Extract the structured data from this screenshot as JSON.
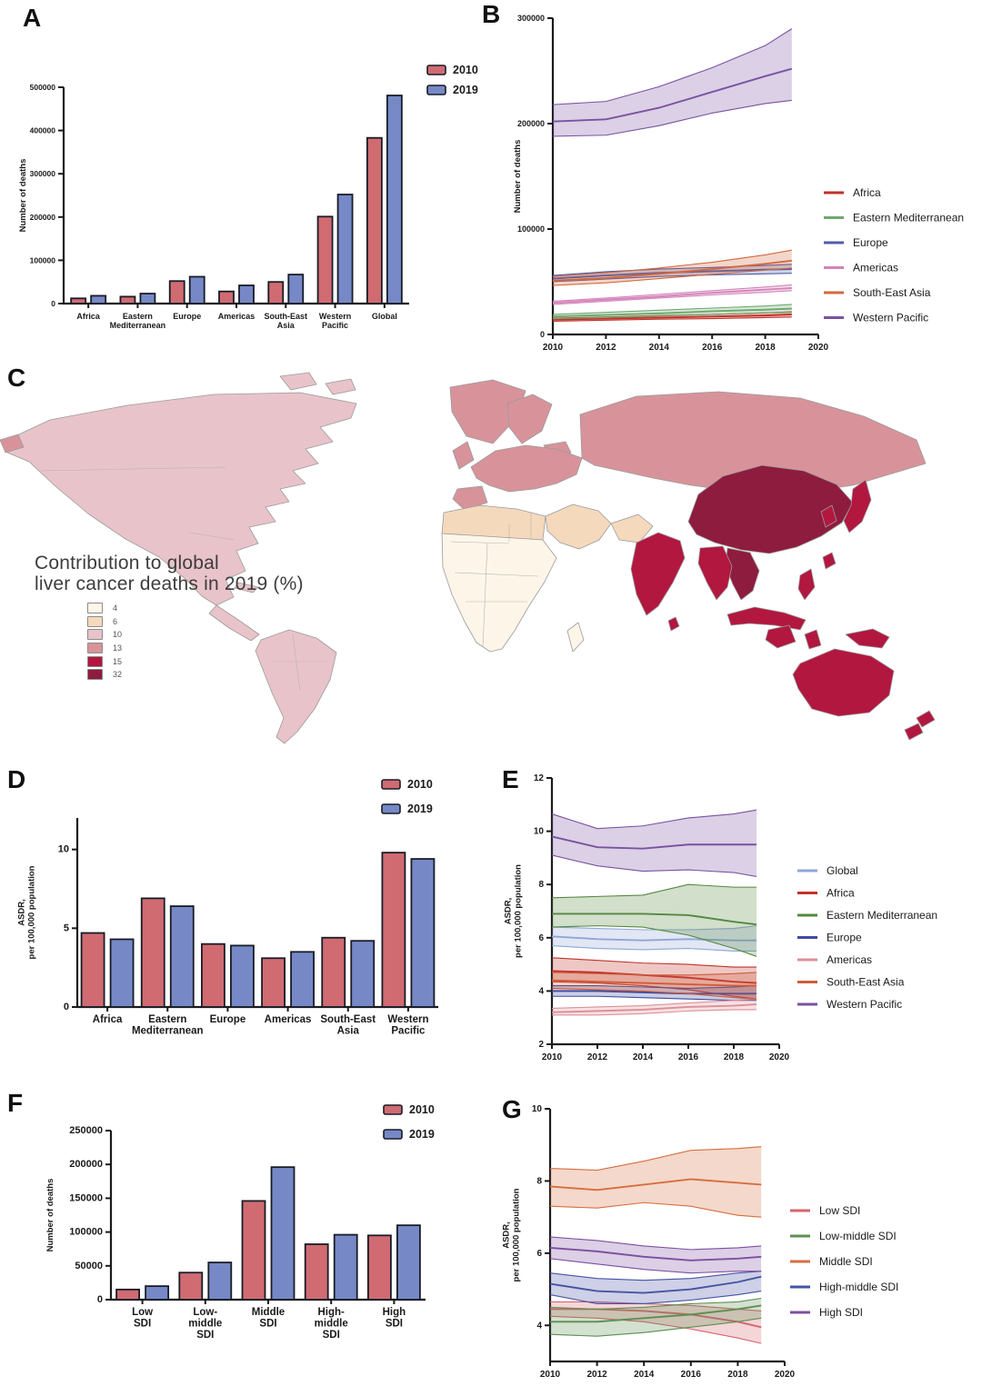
{
  "panels": {
    "A": {
      "label": "A"
    },
    "B": {
      "label": "B"
    },
    "C": {
      "label": "C"
    },
    "D": {
      "label": "D"
    },
    "E": {
      "label": "E"
    },
    "F": {
      "label": "F"
    },
    "G": {
      "label": "G"
    }
  },
  "colors": {
    "bar_2010": "#d06b72",
    "bar_2019": "#7689c6",
    "bar_stroke": "#181c26",
    "axis": "#1a1a1a"
  },
  "map": {
    "legend_title_line1": "Contribution to global",
    "legend_title_line2": "liver  cancer deaths in 2019 (%)",
    "legend_items": [
      {
        "label": "4",
        "color": "#fdf6e8"
      },
      {
        "label": "6",
        "color": "#f5d9bd"
      },
      {
        "label": "10",
        "color": "#e9c3ca"
      },
      {
        "label": "13",
        "color": "#d8939a"
      },
      {
        "label": "15",
        "color": "#b2173f"
      },
      {
        "label": "32",
        "color": "#8e1c3e"
      }
    ],
    "regions": {
      "north-america": "10",
      "arctic-islands-1": "10",
      "arctic-islands-2": "10",
      "central-america": "10",
      "cuba": "10",
      "south-america": "10",
      "greenland": "13",
      "iceland": "13",
      "uk": "13",
      "scandinavia": "13",
      "europe": "13",
      "iberia": "13",
      "russia-central-asia": "13",
      "russia-far-east": "13",
      "north-africa": "6",
      "middle-east": "6",
      "iran-pakistan": "6",
      "sub-saharan-africa": "4",
      "madagascar": "4",
      "china-mongolia": "32",
      "indochina": "32",
      "india": "15",
      "sri-lanka": "15",
      "myanmar-thailand": "15",
      "korea": "15",
      "japan": "15",
      "taiwan": "15",
      "philippines": "15",
      "indonesia": "15",
      "borneo": "15",
      "sulawesi": "15",
      "new-guinea": "15",
      "australia": "15",
      "new-zealand-north": "15",
      "new-zealand-south": "15"
    }
  },
  "chart_data": [
    {
      "panel": "A",
      "type": "bar",
      "ylabel": "Number of deaths",
      "categories": [
        "Africa",
        "Eastern\nMediterranean",
        "Europe",
        "Americas",
        "South-East\nAsia",
        "Western\nPacific",
        "Global"
      ],
      "ylim": [
        0,
        500000
      ],
      "yticks": [
        0,
        100000,
        200000,
        300000,
        400000,
        500000
      ],
      "series": [
        {
          "name": "2010",
          "values": [
            12000,
            16000,
            52000,
            28000,
            50000,
            201000,
            383000
          ]
        },
        {
          "name": "2019",
          "values": [
            18000,
            23000,
            62000,
            42000,
            67000,
            252000,
            481000
          ]
        }
      ]
    },
    {
      "panel": "B",
      "type": "line",
      "ylabel": "Number of deaths",
      "x": [
        2010,
        2012,
        2014,
        2016,
        2018,
        2019
      ],
      "xlim": [
        2010,
        2020
      ],
      "xticks": [
        2010,
        2012,
        2014,
        2016,
        2018,
        2020
      ],
      "ylim": [
        0,
        300000
      ],
      "yticks": [
        0,
        100000,
        200000,
        300000
      ],
      "series": [
        {
          "name": "Africa",
          "color": "#c2312a",
          "center": [
            14000,
            15000,
            16000,
            17000,
            18000,
            19000
          ],
          "lo": [
            12500,
            13500,
            14500,
            15000,
            16000,
            16500
          ],
          "hi": [
            15500,
            16500,
            18000,
            19000,
            20500,
            21500
          ]
        },
        {
          "name": "Eastern Mediterranean",
          "color": "#6ea86e",
          "center": [
            17000,
            18500,
            20000,
            22000,
            23500,
            24500
          ],
          "lo": [
            15000,
            16000,
            17500,
            19000,
            20500,
            21000
          ],
          "hi": [
            19000,
            21000,
            23000,
            25000,
            27000,
            28500
          ]
        },
        {
          "name": "Europe",
          "color": "#4f5ca8",
          "center": [
            53000,
            56000,
            58500,
            60000,
            61500,
            62000
          ],
          "lo": [
            50000,
            52500,
            55000,
            56500,
            57500,
            58000
          ],
          "hi": [
            56000,
            59500,
            62000,
            63500,
            65500,
            66500
          ]
        },
        {
          "name": "Americas",
          "color": "#d483b9",
          "center": [
            30000,
            33000,
            36000,
            39500,
            42500,
            44000
          ],
          "lo": [
            28500,
            31500,
            34500,
            37500,
            40000,
            41500
          ],
          "hi": [
            31500,
            34500,
            38000,
            41500,
            45000,
            47000
          ]
        },
        {
          "name": "South-East Asia",
          "color": "#d2693f",
          "center": [
            51000,
            53500,
            57500,
            62000,
            67000,
            70000
          ],
          "lo": [
            46500,
            49000,
            53000,
            57000,
            61000,
            63000
          ],
          "hi": [
            55000,
            58500,
            63000,
            68500,
            75500,
            80000
          ]
        },
        {
          "name": "Western Pacific",
          "color": "#7a52a1",
          "center": [
            202000,
            204000,
            215000,
            230000,
            245000,
            252000
          ],
          "lo": [
            188000,
            189000,
            198000,
            210000,
            219000,
            222000
          ],
          "hi": [
            218000,
            221000,
            235000,
            253000,
            274000,
            290000
          ]
        }
      ]
    },
    {
      "panel": "C",
      "type": "heatmap",
      "title": "Contribution to global liver cancer deaths in 2019 (%)",
      "buckets": [
        "4",
        "6",
        "10",
        "13",
        "15",
        "32"
      ]
    },
    {
      "panel": "D",
      "type": "bar",
      "ylabel": "ASDR,\nper 100,000 population",
      "categories": [
        "Africa",
        "Eastern\nMediterranean",
        "Europe",
        "Americas",
        "South-East\nAsia",
        "Western\nPacific"
      ],
      "ylim": [
        0,
        12
      ],
      "yticks": [
        0,
        5,
        10
      ],
      "series": [
        {
          "name": "2010",
          "values": [
            4.7,
            6.9,
            4.0,
            3.1,
            4.4,
            9.8
          ]
        },
        {
          "name": "2019",
          "values": [
            4.3,
            6.4,
            3.9,
            3.5,
            4.2,
            9.4
          ]
        }
      ]
    },
    {
      "panel": "E",
      "type": "line",
      "ylabel": "ASDR,\nper 100,000 population",
      "x": [
        2010,
        2012,
        2014,
        2016,
        2018,
        2019
      ],
      "xlim": [
        2010,
        2020
      ],
      "xticks": [
        2010,
        2012,
        2014,
        2016,
        2018,
        2020
      ],
      "ylim": [
        2,
        12
      ],
      "yticks": [
        2,
        4,
        6,
        8,
        10,
        12
      ],
      "series": [
        {
          "name": "Global",
          "color": "#8fa6d6",
          "center": [
            6.05,
            5.95,
            5.9,
            5.95,
            5.9,
            5.9
          ],
          "lo": [
            5.7,
            5.6,
            5.55,
            5.6,
            5.5,
            5.5
          ],
          "hi": [
            6.4,
            6.35,
            6.3,
            6.3,
            6.35,
            6.45
          ]
        },
        {
          "name": "Africa",
          "color": "#c2312a",
          "center": [
            4.75,
            4.7,
            4.6,
            4.5,
            4.35,
            4.3
          ],
          "lo": [
            4.35,
            4.3,
            4.2,
            4.05,
            3.8,
            3.7
          ],
          "hi": [
            5.25,
            5.15,
            5.05,
            5.0,
            4.9,
            4.9
          ]
        },
        {
          "name": "Eastern Mediterranean",
          "color": "#55883f",
          "center": [
            6.9,
            6.9,
            6.9,
            6.85,
            6.6,
            6.5
          ],
          "lo": [
            6.4,
            6.45,
            6.4,
            6.1,
            5.6,
            5.3
          ],
          "hi": [
            7.5,
            7.55,
            7.6,
            8.0,
            7.9,
            7.9
          ]
        },
        {
          "name": "Europe",
          "color": "#3f4ba0",
          "center": [
            4.0,
            4.0,
            3.95,
            3.9,
            3.9,
            3.9
          ],
          "lo": [
            3.8,
            3.8,
            3.75,
            3.7,
            3.65,
            3.65
          ],
          "hi": [
            4.2,
            4.2,
            4.15,
            4.1,
            4.15,
            4.2
          ]
        },
        {
          "name": "Americas",
          "color": "#dd8f98",
          "center": [
            3.2,
            3.25,
            3.3,
            3.4,
            3.45,
            3.5
          ],
          "lo": [
            3.1,
            3.1,
            3.15,
            3.25,
            3.3,
            3.3
          ],
          "hi": [
            3.35,
            3.4,
            3.45,
            3.55,
            3.65,
            3.7
          ]
        },
        {
          "name": "South-East Asia",
          "color": "#cf5c38",
          "center": [
            4.4,
            4.35,
            4.3,
            4.25,
            4.2,
            4.2
          ],
          "lo": [
            4.1,
            4.05,
            4.0,
            3.9,
            3.75,
            3.7
          ],
          "hi": [
            4.7,
            4.65,
            4.6,
            4.6,
            4.65,
            4.7
          ]
        },
        {
          "name": "Western Pacific",
          "color": "#7a52a1",
          "center": [
            9.8,
            9.4,
            9.35,
            9.5,
            9.5,
            9.5
          ],
          "lo": [
            9.1,
            8.7,
            8.5,
            8.55,
            8.45,
            8.3
          ],
          "hi": [
            10.65,
            10.1,
            10.2,
            10.5,
            10.65,
            10.8
          ]
        }
      ]
    },
    {
      "panel": "F",
      "type": "bar",
      "ylabel": "Number of deaths",
      "categories": [
        "Low\nSDI",
        "Low-\nmiddle\nSDI",
        "Middle\nSDI",
        "High-\nmiddle\nSDI",
        "High\nSDI"
      ],
      "ylim": [
        0,
        250000
      ],
      "yticks": [
        0,
        50000,
        100000,
        150000,
        200000,
        250000
      ],
      "series": [
        {
          "name": "2010",
          "values": [
            15000,
            40000,
            146000,
            82000,
            95000
          ]
        },
        {
          "name": "2019",
          "values": [
            20000,
            55000,
            196000,
            96000,
            110000
          ]
        }
      ]
    },
    {
      "panel": "G",
      "type": "line",
      "ylabel": "ASDR,\nper 100,000 population",
      "x": [
        2010,
        2012,
        2014,
        2016,
        2018,
        2019
      ],
      "xlim": [
        2010,
        2020
      ],
      "xticks": [
        2010,
        2012,
        2014,
        2016,
        2018,
        2020
      ],
      "ylim": [
        3,
        10
      ],
      "yticks": [
        4,
        6,
        8,
        10
      ],
      "series": [
        {
          "name": "Low SDI",
          "color": "#d5656f",
          "center": [
            4.45,
            4.45,
            4.4,
            4.3,
            4.1,
            3.95
          ],
          "lo": [
            4.25,
            4.2,
            4.1,
            3.9,
            3.65,
            3.5
          ],
          "hi": [
            4.65,
            4.65,
            4.6,
            4.55,
            4.45,
            4.4
          ]
        },
        {
          "name": "Low-middle SDI",
          "color": "#5c8f51",
          "center": [
            4.1,
            4.1,
            4.2,
            4.3,
            4.45,
            4.55
          ],
          "lo": [
            3.75,
            3.7,
            3.8,
            3.95,
            4.1,
            4.2
          ],
          "hi": [
            4.5,
            4.45,
            4.5,
            4.6,
            4.65,
            4.75
          ]
        },
        {
          "name": "Middle SDI",
          "color": "#d56f3e",
          "center": [
            7.85,
            7.75,
            7.9,
            8.05,
            7.95,
            7.9
          ],
          "lo": [
            7.3,
            7.25,
            7.4,
            7.3,
            7.05,
            7.0
          ],
          "hi": [
            8.35,
            8.3,
            8.55,
            8.85,
            8.9,
            8.95
          ]
        },
        {
          "name": "High-middle SDI",
          "color": "#4753a4",
          "center": [
            5.15,
            4.95,
            4.9,
            5.0,
            5.2,
            5.35
          ],
          "lo": [
            4.85,
            4.6,
            4.6,
            4.7,
            4.85,
            4.95
          ],
          "hi": [
            5.45,
            5.3,
            5.25,
            5.3,
            5.45,
            5.5
          ]
        },
        {
          "name": "High SDI",
          "color": "#7c4fa1",
          "center": [
            6.15,
            6.05,
            5.9,
            5.8,
            5.85,
            5.9
          ],
          "lo": [
            5.85,
            5.7,
            5.55,
            5.45,
            5.5,
            5.5
          ],
          "hi": [
            6.45,
            6.35,
            6.2,
            6.1,
            6.15,
            6.2
          ]
        }
      ]
    }
  ]
}
